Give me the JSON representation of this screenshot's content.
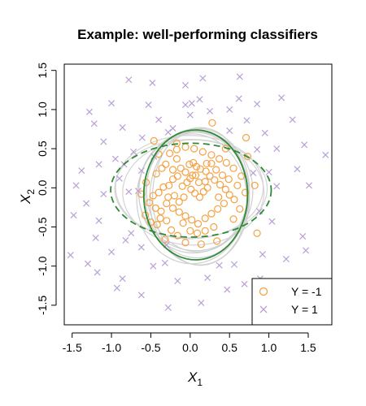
{
  "chart_data": {
    "type": "scatter",
    "title": "Example: well-performing classifiers",
    "xlabel": {
      "base": "X",
      "sub": "1"
    },
    "ylabel": {
      "base": "X",
      "sub": "2"
    },
    "xlim": [
      -1.6,
      1.8
    ],
    "ylim": [
      -1.75,
      1.58
    ],
    "x_ticks": [
      -1.5,
      -1.0,
      -0.5,
      0.0,
      0.5,
      1.0,
      1.5
    ],
    "x_tick_labels": [
      "-1.5",
      "-1.0",
      "-0.5",
      "0.0",
      "0.5",
      "1.0",
      "1.5"
    ],
    "y_ticks": [
      -1.5,
      -1.0,
      -0.5,
      0.0,
      0.5,
      1.0,
      1.5
    ],
    "y_tick_labels": [
      "-1.5",
      "-1.0",
      "-0.5",
      "0.0",
      "0.5",
      "1.0",
      "1.5"
    ],
    "grid": false,
    "legend_position": "bottom-right",
    "legend": [
      {
        "label": "Y = -1",
        "marker": "circle",
        "color": "#f5a142"
      },
      {
        "label": "Y = 1",
        "marker": "cross",
        "color": "#b9a0d6"
      }
    ],
    "series": [
      {
        "label": "Y = -1",
        "marker": "circle",
        "color": "#f5a142",
        "points": [
          [
            -0.5,
            -0.44
          ],
          [
            -0.42,
            -0.47
          ],
          [
            -0.38,
            -0.39
          ],
          [
            -0.3,
            -0.42
          ],
          [
            -0.47,
            -0.1
          ],
          [
            -0.4,
            -0.06
          ],
          [
            -0.34,
            0.01
          ],
          [
            -0.27,
            0.03
          ],
          [
            -0.22,
            0.11
          ],
          [
            -0.16,
            0.15
          ],
          [
            -0.43,
            0.18
          ],
          [
            -0.36,
            0.25
          ],
          [
            -0.31,
            0.3
          ],
          [
            -0.22,
            0.23
          ],
          [
            -0.12,
            0.25
          ],
          [
            -0.3,
            -0.2
          ],
          [
            -0.22,
            -0.26
          ],
          [
            -0.14,
            -0.31
          ],
          [
            -0.06,
            -0.36
          ],
          [
            0.02,
            -0.41
          ],
          [
            0.1,
            -0.46
          ],
          [
            0.19,
            -0.39
          ],
          [
            0.27,
            -0.33
          ],
          [
            0.35,
            -0.27
          ],
          [
            0.43,
            -0.2
          ],
          [
            -0.01,
            0.3
          ],
          [
            0.04,
            0.32
          ],
          [
            0.08,
            0.27
          ],
          [
            0.13,
            0.24
          ],
          [
            0.2,
            0.21
          ],
          [
            0.25,
            0.15
          ],
          [
            0.31,
            0.1
          ],
          [
            0.38,
            0.04
          ],
          [
            0.45,
            -0.02
          ],
          [
            0.5,
            -0.09
          ],
          [
            0.56,
            -0.15
          ],
          [
            -0.26,
            0.44
          ],
          [
            -0.17,
            0.49
          ],
          [
            -0.06,
            0.52
          ],
          [
            0.05,
            0.5
          ],
          [
            0.16,
            0.46
          ],
          [
            0.27,
            0.42
          ],
          [
            0.37,
            0.37
          ],
          [
            0.46,
            0.32
          ],
          [
            0.55,
            0.25
          ],
          [
            -0.1,
            0.02
          ],
          [
            -0.04,
            0.07
          ],
          [
            0.01,
            -0.02
          ],
          [
            0.06,
            -0.07
          ],
          [
            0.12,
            -0.12
          ],
          [
            0.17,
            -0.05
          ],
          [
            0.22,
            0.0
          ],
          [
            -0.08,
            -0.12
          ],
          [
            -0.14,
            -0.18
          ],
          [
            -0.2,
            -0.1
          ],
          [
            0.0,
            0.12
          ],
          [
            0.07,
            0.16
          ],
          [
            -0.06,
            0.2
          ],
          [
            -0.44,
            -0.26
          ],
          [
            -0.37,
            -0.3
          ],
          [
            -0.09,
            -0.45
          ],
          [
            0.0,
            -0.55
          ],
          [
            0.09,
            -0.58
          ],
          [
            0.19,
            -0.55
          ],
          [
            0.3,
            -0.5
          ],
          [
            -0.24,
            -0.54
          ],
          [
            -0.16,
            -0.61
          ],
          [
            0.27,
            0.31
          ],
          [
            0.33,
            0.23
          ],
          [
            0.41,
            0.16
          ],
          [
            0.49,
            0.11
          ],
          [
            0.6,
            0.03
          ],
          [
            0.7,
            -0.06
          ],
          [
            0.63,
            -0.27
          ],
          [
            0.55,
            -0.4
          ],
          [
            -0.56,
            0.07
          ],
          [
            -0.52,
            -0.19
          ],
          [
            -0.57,
            -0.35
          ],
          [
            -0.62,
            -0.08
          ],
          [
            0.28,
            0.83
          ],
          [
            0.71,
            0.64
          ],
          [
            -0.4,
            0.43
          ],
          [
            0.03,
            0.16
          ],
          [
            0.11,
            0.07
          ],
          [
            -0.17,
            0.37
          ],
          [
            0.21,
            0.31
          ],
          [
            0.36,
            -0.12
          ],
          [
            -0.28,
            -0.12
          ],
          [
            -0.17,
            0.57
          ],
          [
            0.45,
            0.5
          ],
          [
            0.65,
            0.15
          ],
          [
            0.85,
            -0.58
          ],
          [
            0.73,
            0.4
          ],
          [
            0.82,
            0.03
          ],
          [
            -0.06,
            -0.7
          ],
          [
            0.14,
            -0.72
          ],
          [
            0.34,
            -0.68
          ],
          [
            -0.32,
            -0.66
          ],
          [
            -0.46,
            0.6
          ],
          [
            0.19,
            0.08
          ]
        ]
      },
      {
        "label": "Y = 1",
        "marker": "cross",
        "color": "#b9a0d6",
        "points": [
          [
            -0.78,
            1.38
          ],
          [
            -0.48,
            1.34
          ],
          [
            -0.06,
            1.31
          ],
          [
            0.16,
            1.4
          ],
          [
            -1.28,
            0.97
          ],
          [
            -1.0,
            1.08
          ],
          [
            -0.53,
            1.06
          ],
          [
            0.12,
            1.13
          ],
          [
            0.62,
            1.14
          ],
          [
            0.85,
            1.07
          ],
          [
            1.16,
            1.15
          ],
          [
            -1.22,
            0.82
          ],
          [
            -0.86,
            0.77
          ],
          [
            -0.4,
            0.87
          ],
          [
            0.0,
            0.93
          ],
          [
            0.25,
            0.98
          ],
          [
            0.72,
            0.86
          ],
          [
            0.95,
            0.7
          ],
          [
            1.3,
            0.87
          ],
          [
            -1.1,
            0.59
          ],
          [
            -0.61,
            0.64
          ],
          [
            -0.28,
            0.71
          ],
          [
            0.5,
            0.73
          ],
          [
            0.85,
            0.49
          ],
          [
            1.1,
            0.5
          ],
          [
            1.45,
            0.55
          ],
          [
            -1.38,
            0.22
          ],
          [
            -1.16,
            0.3
          ],
          [
            -0.84,
            0.3
          ],
          [
            -0.62,
            0.22
          ],
          [
            -1.45,
            0.03
          ],
          [
            -1.32,
            -0.2
          ],
          [
            -1.1,
            -0.08
          ],
          [
            -0.78,
            -0.05
          ],
          [
            -1.48,
            -0.35
          ],
          [
            -1.16,
            -0.42
          ],
          [
            -0.75,
            -0.58
          ],
          [
            -1.52,
            -0.86
          ],
          [
            -1.3,
            -0.97
          ],
          [
            -1.0,
            -0.82
          ],
          [
            -0.82,
            -0.67
          ],
          [
            -0.62,
            -0.76
          ],
          [
            -0.3,
            -0.73
          ],
          [
            -1.18,
            -1.08
          ],
          [
            -0.86,
            -1.16
          ],
          [
            -0.47,
            -1.0
          ],
          [
            -0.16,
            -1.19
          ],
          [
            0.22,
            -1.15
          ],
          [
            -0.93,
            -1.28
          ],
          [
            -0.62,
            -1.37
          ],
          [
            -0.28,
            -1.53
          ],
          [
            0.14,
            -1.47
          ],
          [
            0.47,
            -1.3
          ],
          [
            0.69,
            -1.23
          ],
          [
            1.08,
            -1.34
          ],
          [
            0.56,
            -0.98
          ],
          [
            0.92,
            -0.85
          ],
          [
            1.22,
            -0.91
          ],
          [
            1.43,
            -0.62
          ],
          [
            1.47,
            -0.8
          ],
          [
            0.88,
            -0.3
          ],
          [
            1.1,
            0.02
          ],
          [
            1.0,
            0.2
          ],
          [
            1.36,
            0.24
          ],
          [
            1.51,
            0.03
          ],
          [
            1.72,
            0.42
          ],
          [
            -0.72,
            0.46
          ],
          [
            -0.46,
            0.4
          ],
          [
            -0.9,
            0.12
          ],
          [
            0.02,
            1.08
          ],
          [
            0.5,
            1.0
          ],
          [
            -0.22,
            0.76
          ],
          [
            0.8,
            0.19
          ],
          [
            1.04,
            -0.43
          ],
          [
            0.89,
            -1.16
          ],
          [
            -0.66,
            -0.04
          ],
          [
            -0.95,
            0.37
          ],
          [
            -1.2,
            -0.64
          ],
          [
            -0.32,
            -0.96
          ],
          [
            0.37,
            -0.99
          ],
          [
            -0.06,
            1.06
          ],
          [
            0.63,
            1.42
          ]
        ]
      }
    ],
    "boundaries": [
      {
        "kind": "ellipse",
        "style": "solid",
        "color": "#2e8b35",
        "cx": 0.07,
        "cy": -0.09,
        "rx": 0.66,
        "ry": 0.83
      },
      {
        "kind": "ellipse",
        "style": "dashed",
        "color": "#2e8b35",
        "cx": 0.01,
        "cy": -0.03,
        "rx": 1.02,
        "ry": 0.6
      }
    ]
  }
}
